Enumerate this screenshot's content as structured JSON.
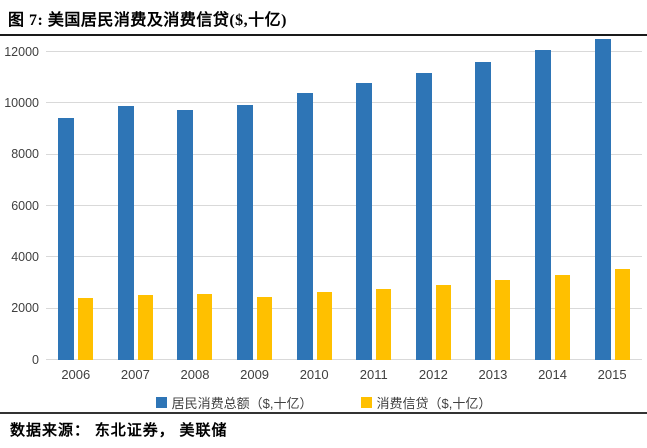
{
  "header": {
    "title": "图 7: 美国居民消费及消费信贷($,十亿)"
  },
  "chart_data": {
    "type": "bar",
    "title": "图 7: 美国居民消费及消费信贷($,十亿)",
    "categories": [
      "2006",
      "2007",
      "2008",
      "2009",
      "2010",
      "2011",
      "2012",
      "2013",
      "2014",
      "2015"
    ],
    "series": [
      {
        "name": "居民消费总额（$,十亿）",
        "color": "#2e75b6",
        "values": [
          9450,
          9900,
          9750,
          9950,
          10400,
          10800,
          11200,
          11600,
          12100,
          12500
        ]
      },
      {
        "name": "消费信贷（$,十亿）",
        "color": "#ffc000",
        "values": [
          2400,
          2520,
          2560,
          2450,
          2650,
          2760,
          2920,
          3100,
          3320,
          3530
        ]
      }
    ],
    "xlabel": "",
    "ylabel": "",
    "ylim": [
      0,
      12550
    ],
    "yticks": [
      0,
      2000,
      4000,
      6000,
      8000,
      10000,
      12000
    ],
    "grid": "horizontal",
    "legend_position": "bottom-center"
  },
  "footer": {
    "source": "数据来源： 东北证券， 美联储"
  },
  "colors": {
    "series_blue": "#2e75b6",
    "series_gold": "#ffc000",
    "gridline": "#d9d9d9",
    "axis_text": "#404040",
    "rule": "#1a1a1a"
  }
}
